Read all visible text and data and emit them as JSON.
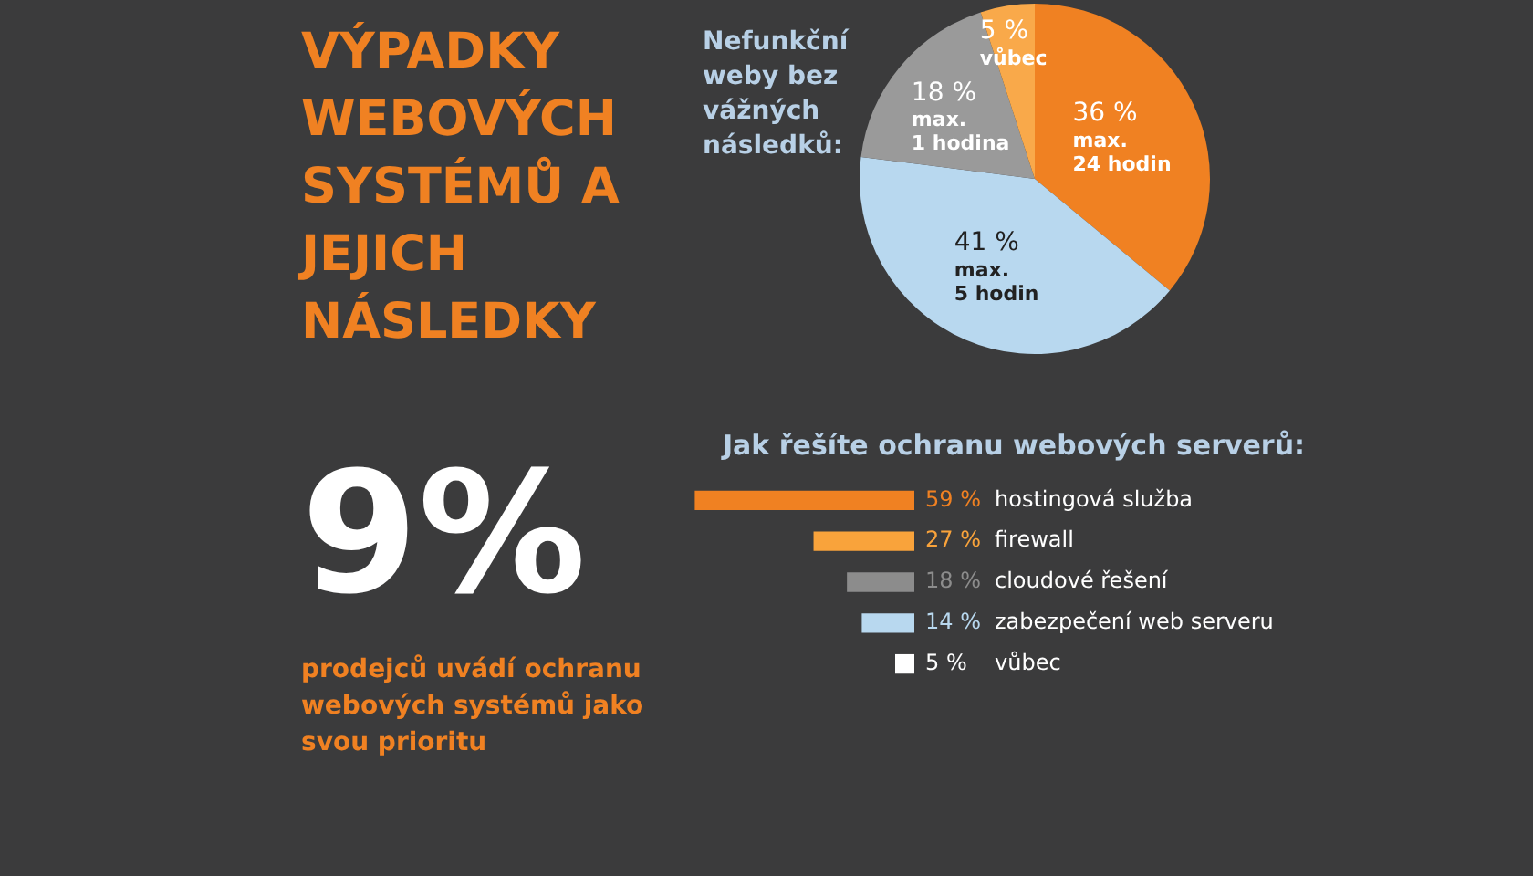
{
  "chart_data": [
    {
      "type": "other",
      "title": "VÝPADKY WEBOVÝCH SYSTÉMŮ A JEJICH NÁSLEDKY",
      "annotations": [
        "9%",
        "prodejců uvádí ochranu webových systémů jako svou prioritu"
      ]
    },
    {
      "type": "pie",
      "title": "Nefunkční weby bez vážných následků:",
      "categories": [
        "max. 24 hodin",
        "max. 5 hodin",
        "max. 1 hodina",
        "vůbec"
      ],
      "values": [
        36,
        41,
        18,
        5
      ],
      "colors": [
        "#f08122",
        "#b8d8ef",
        "#9a9a9a",
        "#f9a94a"
      ],
      "value_labels": [
        "36 %",
        "41 %",
        "18 %",
        "5 %"
      ],
      "legend": false
    },
    {
      "type": "bar",
      "orientation": "horizontal",
      "title": "Jak řešíte ochranu webových serverů:",
      "categories": [
        "hostingová služba",
        "firewall",
        "cloudové řešení",
        "zabezpečení web serveru",
        "vůbec"
      ],
      "values": [
        59,
        27,
        18,
        14,
        5
      ],
      "colors": [
        "#f08122",
        "#f9a33b",
        "#8c8c8c",
        "#b8d8ef",
        "#ffffff"
      ],
      "value_labels": [
        "59 %",
        "27 %",
        "18 %",
        "14 %",
        "5 %"
      ],
      "tick_labels": "y",
      "grid": false,
      "legend": false
    }
  ]
}
